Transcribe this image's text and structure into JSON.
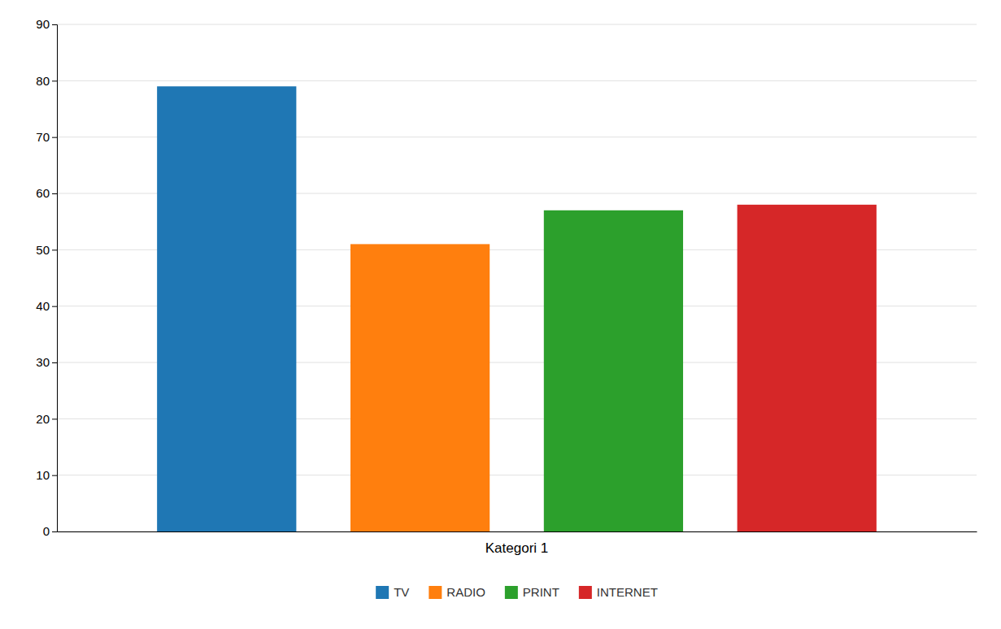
{
  "chart_data": {
    "type": "bar",
    "categories": [
      "Kategori 1"
    ],
    "series": [
      {
        "name": "TV",
        "values": [
          79
        ]
      },
      {
        "name": "RADIO",
        "values": [
          51
        ]
      },
      {
        "name": "PRINT",
        "values": [
          57
        ]
      },
      {
        "name": "INTERNET",
        "values": [
          58
        ]
      }
    ],
    "ylim": [
      0,
      90
    ],
    "yticks": [
      0,
      10,
      20,
      30,
      40,
      50,
      60,
      70,
      80,
      90
    ],
    "grid": true,
    "legend": "bottom"
  }
}
